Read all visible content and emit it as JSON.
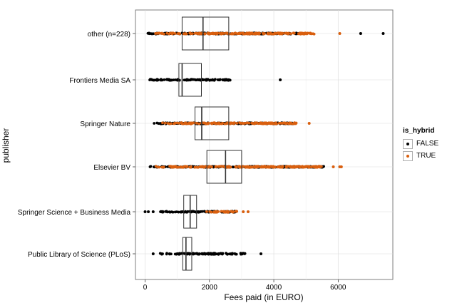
{
  "chart_data": {
    "type": "boxplot",
    "orientation": "horizontal",
    "title": "",
    "xlabel": "Fees paid (in EURO)",
    "ylabel": "publisher",
    "xlim": [
      -300,
      7700
    ],
    "xticks": [
      0,
      2000,
      4000,
      6000
    ],
    "grid": true,
    "legend_position": "right",
    "legend": {
      "title": "is_hybrid",
      "entries": [
        {
          "label": "FALSE",
          "color": "#000000"
        },
        {
          "label": "TRUE",
          "color": "#d95f0e"
        }
      ]
    },
    "categories": [
      "other (n=228)",
      "Frontiers Media SA",
      "Springer Nature",
      "Elsevier BV",
      "Springer Science + Business Media",
      "Public Library of Science (PLoS)"
    ],
    "boxes": [
      {
        "category": "other (n=228)",
        "whisker_low": 0,
        "q1": 1150,
        "median": 1800,
        "q3": 2600,
        "whisker_high": 4800
      },
      {
        "category": "Frontiers Media SA",
        "whisker_low": 50,
        "q1": 1050,
        "median": 1150,
        "q3": 1750,
        "whisker_high": 2650
      },
      {
        "category": "Springer Nature",
        "whisker_low": 250,
        "q1": 1550,
        "median": 1760,
        "q3": 2600,
        "whisker_high": 4700
      },
      {
        "category": "Elsevier BV",
        "whisker_low": 150,
        "q1": 1920,
        "median": 2500,
        "q3": 3000,
        "whisker_high": 5600
      },
      {
        "category": "Springer Science + Business Media",
        "whisker_low": 0,
        "q1": 1200,
        "median": 1400,
        "q3": 1600,
        "whisker_high": 2850
      },
      {
        "category": "Public Library of Science (PLoS)",
        "whisker_low": 250,
        "q1": 1170,
        "median": 1270,
        "q3": 1450,
        "whisker_high": 3150
      }
    ],
    "points": [
      {
        "category": "other (n=228)",
        "is_hybrid": "FALSE",
        "ranges": [
          [
            0,
            4800
          ]
        ],
        "outliers": [
          6700,
          7400
        ]
      },
      {
        "category": "other (n=228)",
        "is_hybrid": "TRUE",
        "ranges": [
          [
            300,
            5300
          ]
        ],
        "outliers": [
          6050
        ]
      },
      {
        "category": "Frontiers Media SA",
        "is_hybrid": "FALSE",
        "ranges": [
          [
            100,
            2650
          ]
        ],
        "outliers": [
          4200
        ]
      },
      {
        "category": "Springer Nature",
        "is_hybrid": "FALSE",
        "ranges": [
          [
            250,
            4700
          ]
        ],
        "outliers": []
      },
      {
        "category": "Springer Nature",
        "is_hybrid": "TRUE",
        "ranges": [
          [
            500,
            4700
          ]
        ],
        "outliers": [
          5100
        ]
      },
      {
        "category": "Elsevier BV",
        "is_hybrid": "FALSE",
        "ranges": [
          [
            150,
            5600
          ]
        ],
        "outliers": []
      },
      {
        "category": "Elsevier BV",
        "is_hybrid": "TRUE",
        "ranges": [
          [
            300,
            5500
          ]
        ],
        "outliers": [
          5850,
          6050,
          6100
        ]
      },
      {
        "category": "Springer Science + Business Media",
        "is_hybrid": "FALSE",
        "ranges": [
          [
            400,
            2850
          ]
        ],
        "outliers": [
          0,
          100,
          250
        ]
      },
      {
        "category": "Springer Science + Business Media",
        "is_hybrid": "TRUE",
        "ranges": [
          [
            1900,
            2850
          ]
        ],
        "outliers": [
          3050,
          3200
        ]
      },
      {
        "category": "Public Library of Science (PLoS)",
        "is_hybrid": "FALSE",
        "ranges": [
          [
            400,
            3150
          ]
        ],
        "outliers": [
          250,
          3600
        ]
      }
    ]
  }
}
